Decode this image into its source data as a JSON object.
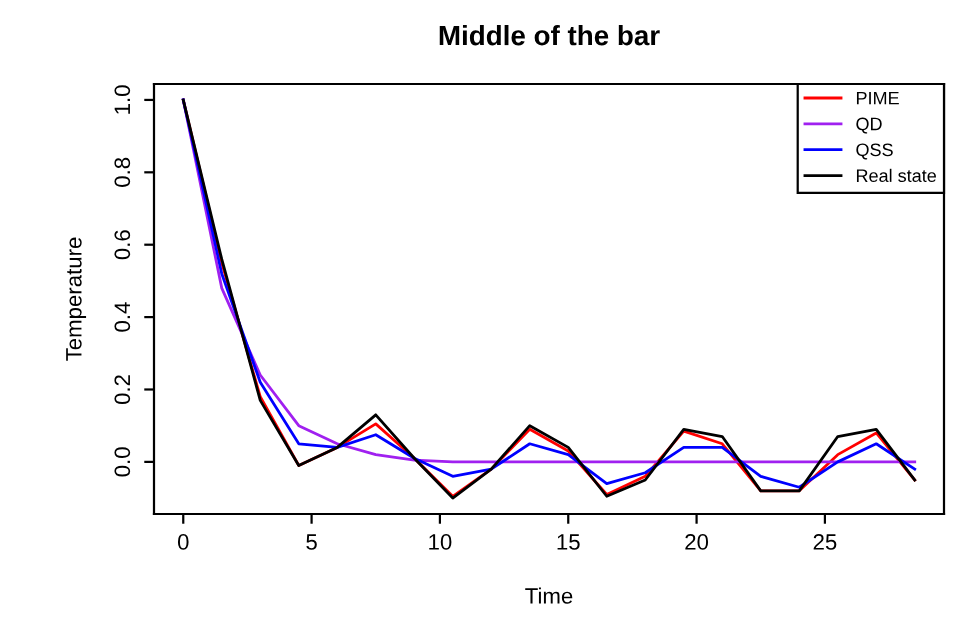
{
  "chart_data": {
    "type": "line",
    "title": "Middle of the bar",
    "xlabel": "Time",
    "ylabel": "Temperature",
    "x": [
      0,
      1.5,
      3,
      4.5,
      6,
      7.5,
      9,
      10.5,
      12,
      13.5,
      15,
      16.5,
      18,
      19.5,
      21,
      22.5,
      24,
      25.5,
      27,
      28.5
    ],
    "series": [
      {
        "name": "PIME",
        "color": "#ff0000",
        "values": [
          1.0,
          0.55,
          0.18,
          -0.01,
          0.04,
          0.105,
          0.01,
          -0.095,
          -0.02,
          0.09,
          0.03,
          -0.09,
          -0.04,
          0.085,
          0.05,
          -0.08,
          -0.08,
          0.02,
          0.08,
          -0.05
        ]
      },
      {
        "name": "QD",
        "color": "#a020f0",
        "values": [
          1.0,
          0.48,
          0.24,
          0.1,
          0.05,
          0.02,
          0.005,
          0.0,
          0.0,
          0.0,
          0.0,
          0.0,
          0.0,
          0.0,
          0.0,
          0.0,
          0.0,
          0.0,
          0.0,
          0.0
        ]
      },
      {
        "name": "QSS",
        "color": "#0000ff",
        "values": [
          1.0,
          0.52,
          0.22,
          0.05,
          0.04,
          0.075,
          0.01,
          -0.04,
          -0.02,
          0.05,
          0.02,
          -0.06,
          -0.03,
          0.04,
          0.04,
          -0.04,
          -0.07,
          0.0,
          0.05,
          -0.02
        ]
      },
      {
        "name": "Real state",
        "color": "#000000",
        "values": [
          1.0,
          0.56,
          0.17,
          -0.01,
          0.04,
          0.13,
          0.01,
          -0.1,
          -0.02,
          0.1,
          0.04,
          -0.095,
          -0.05,
          0.09,
          0.07,
          -0.08,
          -0.08,
          0.07,
          0.09,
          -0.05
        ]
      }
    ],
    "xlim": [
      -1.14,
      29.64
    ],
    "ylim": [
      -0.144,
      1.044
    ],
    "xticks": [
      0,
      5,
      10,
      15,
      20,
      25
    ],
    "yticks": [
      {
        "value": 0,
        "label": "0.0"
      },
      0.2,
      0.4,
      0.6,
      0.8,
      {
        "value": 1,
        "label": "1.0"
      }
    ],
    "grid": false,
    "legend": "top right",
    "marker": "none",
    "line_style": "solid"
  }
}
